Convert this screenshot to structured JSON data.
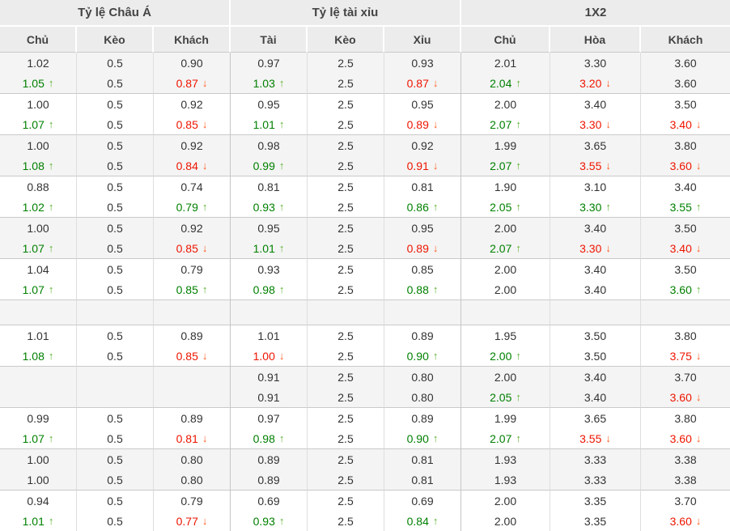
{
  "table": {
    "group_headers": [
      {
        "label": "Tỷ lệ Châu Á"
      },
      {
        "label": "Tỷ lệ tài xỉu"
      },
      {
        "label": "1X2"
      }
    ],
    "column_headers": [
      "Chủ",
      "Kèo",
      "Khách",
      "Tài",
      "Kèo",
      "Xỉu",
      "Chủ",
      "Hòa",
      "Khách"
    ],
    "colors": {
      "header_bg": "#ececec",
      "row_shade": "#f4f4f4",
      "row_plain": "#ffffff",
      "text": "#333333",
      "header_text": "#444444",
      "up_text": "#008000",
      "up_arrow": "#5cb130",
      "down_text": "#ee1500",
      "down_arrow": "#ff5a1e"
    },
    "trend_icons": {
      "up": "↑",
      "down": "↓"
    },
    "rows": [
      {
        "cells": [
          [
            "1.02",
            "1.05",
            "up"
          ],
          [
            "0.5",
            "0.5",
            ""
          ],
          [
            "0.90",
            "0.87",
            "down"
          ],
          [
            "0.97",
            "1.03",
            "up"
          ],
          [
            "2.5",
            "2.5",
            ""
          ],
          [
            "0.93",
            "0.87",
            "down"
          ],
          [
            "2.01",
            "2.04",
            "up"
          ],
          [
            "3.30",
            "3.20",
            "down"
          ],
          [
            "3.60",
            "3.60",
            ""
          ]
        ]
      },
      {
        "cells": [
          [
            "1.00",
            "1.07",
            "up"
          ],
          [
            "0.5",
            "0.5",
            ""
          ],
          [
            "0.92",
            "0.85",
            "down"
          ],
          [
            "0.95",
            "1.01",
            "up"
          ],
          [
            "2.5",
            "2.5",
            ""
          ],
          [
            "0.95",
            "0.89",
            "down"
          ],
          [
            "2.00",
            "2.07",
            "up"
          ],
          [
            "3.40",
            "3.30",
            "down"
          ],
          [
            "3.50",
            "3.40",
            "down"
          ]
        ]
      },
      {
        "cells": [
          [
            "1.00",
            "1.08",
            "up"
          ],
          [
            "0.5",
            "0.5",
            ""
          ],
          [
            "0.92",
            "0.84",
            "down"
          ],
          [
            "0.98",
            "0.99",
            "up"
          ],
          [
            "2.5",
            "2.5",
            ""
          ],
          [
            "0.92",
            "0.91",
            "down"
          ],
          [
            "1.99",
            "2.07",
            "up"
          ],
          [
            "3.65",
            "3.55",
            "down"
          ],
          [
            "3.80",
            "3.60",
            "down"
          ]
        ]
      },
      {
        "cells": [
          [
            "0.88",
            "1.02",
            "up"
          ],
          [
            "0.5",
            "0.5",
            ""
          ],
          [
            "0.74",
            "0.79",
            "up"
          ],
          [
            "0.81",
            "0.93",
            "up"
          ],
          [
            "2.5",
            "2.5",
            ""
          ],
          [
            "0.81",
            "0.86",
            "up"
          ],
          [
            "1.90",
            "2.05",
            "up"
          ],
          [
            "3.10",
            "3.30",
            "up"
          ],
          [
            "3.40",
            "3.55",
            "up"
          ]
        ]
      },
      {
        "cells": [
          [
            "1.00",
            "1.07",
            "up"
          ],
          [
            "0.5",
            "0.5",
            ""
          ],
          [
            "0.92",
            "0.85",
            "down"
          ],
          [
            "0.95",
            "1.01",
            "up"
          ],
          [
            "2.5",
            "2.5",
            ""
          ],
          [
            "0.95",
            "0.89",
            "down"
          ],
          [
            "2.00",
            "2.07",
            "up"
          ],
          [
            "3.40",
            "3.30",
            "down"
          ],
          [
            "3.50",
            "3.40",
            "down"
          ]
        ]
      },
      {
        "cells": [
          [
            "1.04",
            "1.07",
            "up"
          ],
          [
            "0.5",
            "0.5",
            ""
          ],
          [
            "0.79",
            "0.85",
            "up"
          ],
          [
            "0.93",
            "0.98",
            "up"
          ],
          [
            "2.5",
            "2.5",
            ""
          ],
          [
            "0.85",
            "0.88",
            "up"
          ],
          [
            "2.00",
            "2.00",
            ""
          ],
          [
            "3.40",
            "3.40",
            ""
          ],
          [
            "3.50",
            "3.60",
            "up"
          ]
        ]
      },
      {
        "cells": null
      },
      {
        "cells": [
          [
            "1.01",
            "1.08",
            "up"
          ],
          [
            "0.5",
            "0.5",
            ""
          ],
          [
            "0.89",
            "0.85",
            "down"
          ],
          [
            "1.01",
            "1.00",
            "down"
          ],
          [
            "2.5",
            "2.5",
            ""
          ],
          [
            "0.89",
            "0.90",
            "up"
          ],
          [
            "1.95",
            "2.00",
            "up"
          ],
          [
            "3.50",
            "3.50",
            ""
          ],
          [
            "3.80",
            "3.75",
            "down"
          ]
        ]
      },
      {
        "cells": [
          [
            "",
            "",
            ""
          ],
          [
            "",
            "",
            ""
          ],
          [
            "",
            "",
            ""
          ],
          [
            "0.91",
            "0.91",
            ""
          ],
          [
            "2.5",
            "2.5",
            ""
          ],
          [
            "0.80",
            "0.80",
            ""
          ],
          [
            "2.00",
            "2.05",
            "up"
          ],
          [
            "3.40",
            "3.40",
            ""
          ],
          [
            "3.70",
            "3.60",
            "down"
          ]
        ]
      },
      {
        "cells": [
          [
            "0.99",
            "1.07",
            "up"
          ],
          [
            "0.5",
            "0.5",
            ""
          ],
          [
            "0.89",
            "0.81",
            "down"
          ],
          [
            "0.97",
            "0.98",
            "up"
          ],
          [
            "2.5",
            "2.5",
            ""
          ],
          [
            "0.89",
            "0.90",
            "up"
          ],
          [
            "1.99",
            "2.07",
            "up"
          ],
          [
            "3.65",
            "3.55",
            "down"
          ],
          [
            "3.80",
            "3.60",
            "down"
          ]
        ]
      },
      {
        "cells": [
          [
            "1.00",
            "1.00",
            ""
          ],
          [
            "0.5",
            "0.5",
            ""
          ],
          [
            "0.80",
            "0.80",
            ""
          ],
          [
            "0.89",
            "0.89",
            ""
          ],
          [
            "2.5",
            "2.5",
            ""
          ],
          [
            "0.81",
            "0.81",
            ""
          ],
          [
            "1.93",
            "1.93",
            ""
          ],
          [
            "3.33",
            "3.33",
            ""
          ],
          [
            "3.38",
            "3.38",
            ""
          ]
        ]
      },
      {
        "cells": [
          [
            "0.94",
            "1.01",
            "up"
          ],
          [
            "0.5",
            "0.5",
            ""
          ],
          [
            "0.79",
            "0.77",
            "down"
          ],
          [
            "0.69",
            "0.93",
            "up"
          ],
          [
            "2.5",
            "2.5",
            ""
          ],
          [
            "0.69",
            "0.84",
            "up"
          ],
          [
            "2.00",
            "2.00",
            ""
          ],
          [
            "3.35",
            "3.35",
            ""
          ],
          [
            "3.70",
            "3.60",
            "down"
          ]
        ]
      }
    ]
  }
}
